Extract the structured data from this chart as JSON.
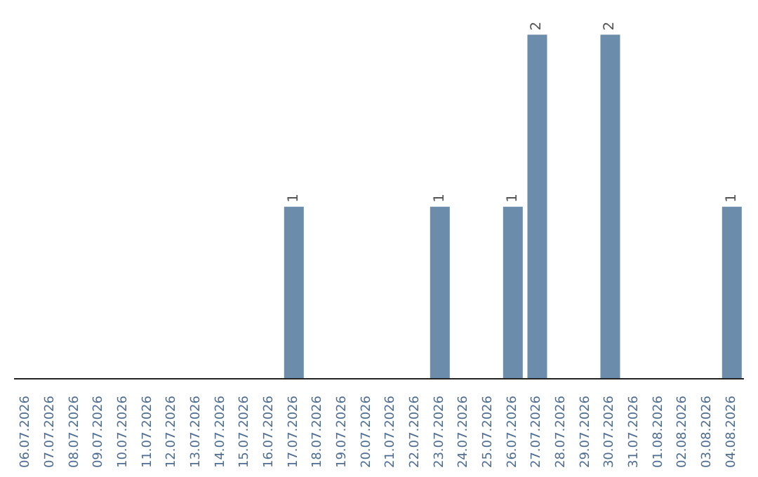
{
  "chart_data": {
    "type": "bar",
    "categories": [
      "06.07.2026",
      "07.07.2026",
      "08.07.2026",
      "09.07.2026",
      "10.07.2026",
      "11.07.2026",
      "12.07.2026",
      "13.07.2026",
      "14.07.2026",
      "15.07.2026",
      "16.07.2026",
      "17.07.2026",
      "18.07.2026",
      "19.07.2026",
      "20.07.2026",
      "21.07.2026",
      "22.07.2026",
      "23.07.2026",
      "24.07.2026",
      "25.07.2026",
      "26.07.2026",
      "27.07.2026",
      "28.07.2026",
      "29.07.2026",
      "30.07.2026",
      "31.07.2026",
      "01.08.2026",
      "02.08.2026",
      "03.08.2026",
      "04.08.2026"
    ],
    "values": [
      0,
      0,
      0,
      0,
      0,
      0,
      0,
      0,
      0,
      0,
      0,
      1,
      0,
      0,
      0,
      0,
      0,
      1,
      0,
      0,
      1,
      2,
      0,
      0,
      2,
      0,
      0,
      0,
      0,
      1
    ],
    "value_labels": [
      null,
      null,
      null,
      null,
      null,
      null,
      null,
      null,
      null,
      null,
      null,
      "1",
      null,
      null,
      null,
      null,
      null,
      "1",
      null,
      null,
      "1",
      "2",
      null,
      null,
      "2",
      null,
      null,
      null,
      null,
      "1"
    ],
    "color": "#6b8cab"
  }
}
